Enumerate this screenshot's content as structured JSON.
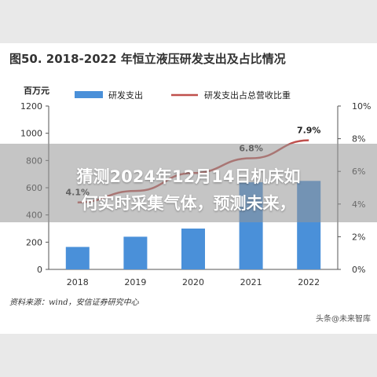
{
  "figure_title": "图50. 2018-2022 年恒立液压研发支出及占比情况",
  "unit_label": "百万元",
  "source_note": "资料来源：wind，安信证券研究中心",
  "watermark": "头条@未来智库",
  "overlay": {
    "line1": "猜测2024年12月14日机床如",
    "line2": "何实时采集气体，预测未来，"
  },
  "colors": {
    "bar": "#4a90d9",
    "line": "#c0504d"
  },
  "chart_data": {
    "type": "bar",
    "categories": [
      "2018",
      "2019",
      "2020",
      "2021",
      "2022"
    ],
    "series": [
      {
        "name": "研发支出",
        "type": "bar",
        "axis": "left",
        "values": [
          165,
          240,
          300,
          640,
          650
        ]
      },
      {
        "name": "研发支出占总营收比重",
        "type": "line",
        "axis": "right",
        "values": [
          4.1,
          4.8,
          5.9,
          6.8,
          7.9
        ]
      }
    ],
    "data_labels": [
      "4.1%",
      "",
      "",
      "6.8%",
      "7.9%"
    ],
    "yticks_left": [
      "0",
      "200",
      "400",
      "600",
      "800",
      "1000",
      "1200"
    ],
    "yticks_right": [
      "0%",
      "2%",
      "4%",
      "6%",
      "8%",
      "10%"
    ],
    "ylim_left": [
      0,
      1200
    ],
    "ylim_right": [
      0,
      10
    ],
    "legend_position": "top"
  }
}
